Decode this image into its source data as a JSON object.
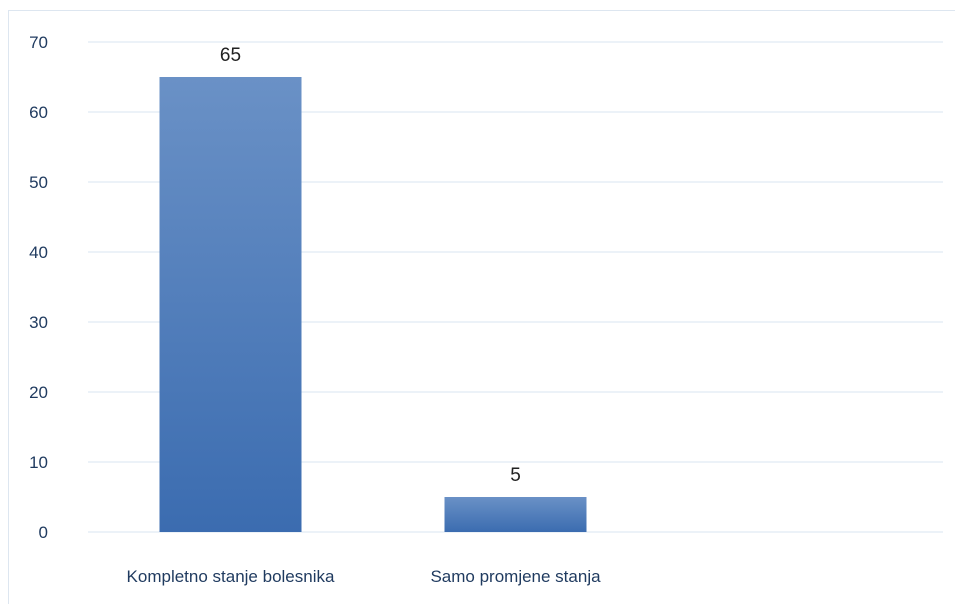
{
  "chart_data": {
    "type": "bar",
    "categories": [
      "Kompletno stanje bolesnika",
      "Samo promjene stanja"
    ],
    "values": [
      65,
      5
    ],
    "data_labels": [
      "65",
      "5"
    ],
    "ylim": [
      0,
      70
    ],
    "yticks": [
      0,
      10,
      20,
      30,
      40,
      50,
      60,
      70
    ],
    "grid": true,
    "legend": "none",
    "title": "",
    "xlabel": "",
    "ylabel": "",
    "colors": {
      "bar_top": "#6a91c6",
      "bar_bottom": "#3b6cb0",
      "grid": "#d9e4f0",
      "axis_text": "#1f3a5f"
    }
  }
}
